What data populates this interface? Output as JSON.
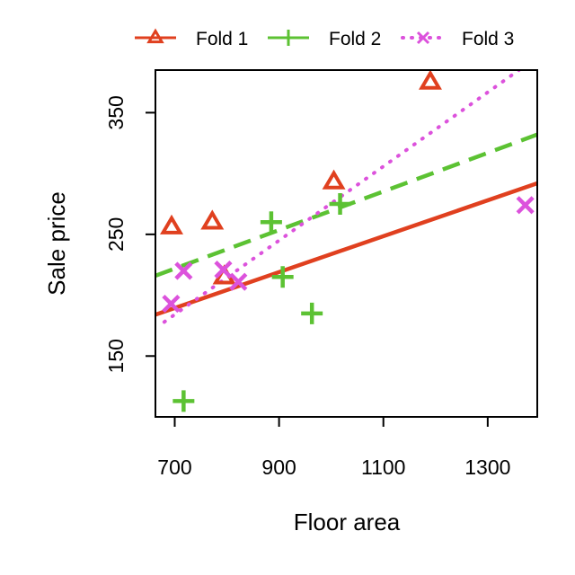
{
  "chart_data": {
    "type": "scatter",
    "xlabel": "Floor area",
    "ylabel": "Sale price",
    "xlim": [
      663,
      1395
    ],
    "ylim": [
      100,
      385
    ],
    "x_ticks": [
      700,
      900,
      1100,
      1300
    ],
    "y_ticks": [
      150,
      250,
      350
    ],
    "grid": false,
    "legend_position": "top",
    "series": [
      {
        "name": "Fold 1",
        "color": "#e0401f",
        "marker": "triangle",
        "line_style": "solid",
        "points": [
          {
            "x": 694,
            "y": 256
          },
          {
            "x": 772,
            "y": 260
          },
          {
            "x": 795,
            "y": 215
          },
          {
            "x": 1005,
            "y": 293
          },
          {
            "x": 1190,
            "y": 375
          }
        ],
        "fit_line": [
          {
            "x": 663,
            "y": 184
          },
          {
            "x": 1395,
            "y": 292
          }
        ]
      },
      {
        "name": "Fold 2",
        "color": "#5cc233",
        "marker": "plus",
        "line_style": "dashed",
        "points": [
          {
            "x": 717,
            "y": 113
          },
          {
            "x": 885,
            "y": 260
          },
          {
            "x": 907,
            "y": 215
          },
          {
            "x": 963,
            "y": 185
          },
          {
            "x": 1017,
            "y": 275
          }
        ],
        "fit_line": [
          {
            "x": 663,
            "y": 216
          },
          {
            "x": 1395,
            "y": 332
          }
        ]
      },
      {
        "name": "Fold 3",
        "color": "#dc52dc",
        "marker": "cross",
        "line_style": "dotted",
        "points": [
          {
            "x": 693,
            "y": 193
          },
          {
            "x": 717,
            "y": 220
          },
          {
            "x": 793,
            "y": 221
          },
          {
            "x": 822,
            "y": 211
          },
          {
            "x": 1372,
            "y": 274
          }
        ],
        "fit_line": [
          {
            "x": 680,
            "y": 178
          },
          {
            "x": 1360,
            "y": 385
          }
        ]
      }
    ]
  }
}
